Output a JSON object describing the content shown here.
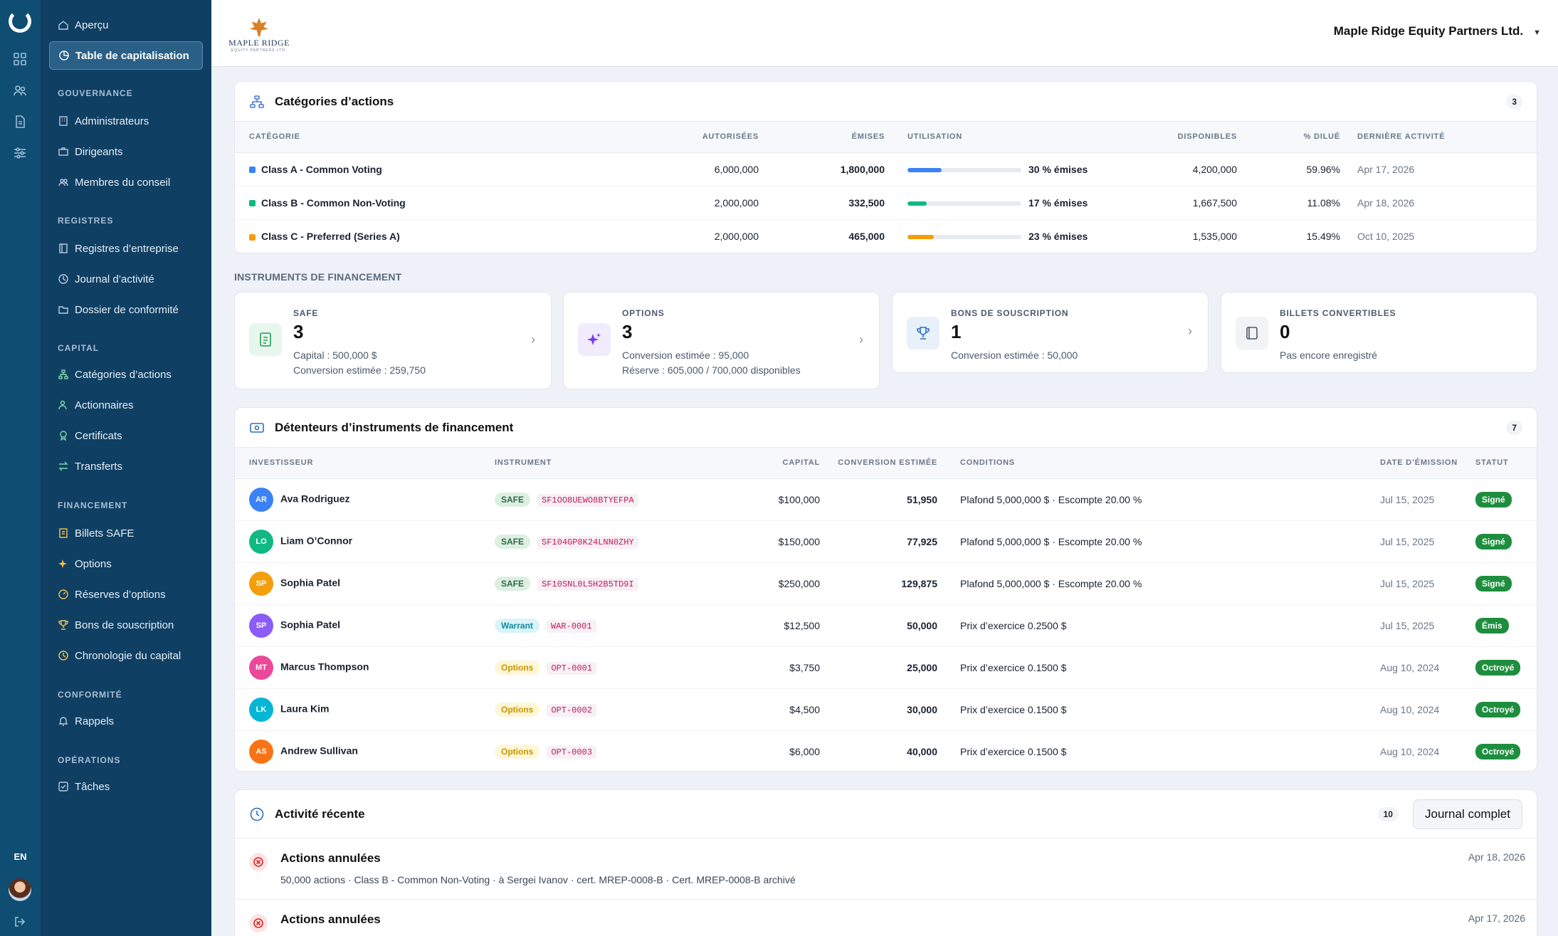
{
  "rail": {
    "lang": "EN",
    "icons": [
      "dashboard-icon",
      "people-icon",
      "document-icon",
      "sliders-icon"
    ]
  },
  "sidebar": {
    "top": [
      {
        "label": "Aperçu"
      },
      {
        "label": "Table de capitalisation"
      }
    ],
    "sections": [
      {
        "title": "GOUVERNANCE",
        "items": [
          {
            "label": "Administrateurs"
          },
          {
            "label": "Dirigeants"
          },
          {
            "label": "Membres du conseil"
          }
        ]
      },
      {
        "title": "REGISTRES",
        "items": [
          {
            "label": "Registres d’entreprise"
          },
          {
            "label": "Journal d’activité"
          },
          {
            "label": "Dossier de conformité"
          }
        ]
      },
      {
        "title": "CAPITAL",
        "items": [
          {
            "label": "Catégories d’actions"
          },
          {
            "label": "Actionnaires"
          },
          {
            "label": "Certificats"
          },
          {
            "label": "Transferts"
          }
        ]
      },
      {
        "title": "FINANCEMENT",
        "items": [
          {
            "label": "Billets SAFE"
          },
          {
            "label": "Options"
          },
          {
            "label": "Réserves d’options"
          },
          {
            "label": "Bons de souscription"
          },
          {
            "label": "Chronologie du capital"
          }
        ]
      },
      {
        "title": "CONFORMITÉ",
        "items": [
          {
            "label": "Rappels"
          }
        ]
      },
      {
        "title": "OPÉRATIONS",
        "items": [
          {
            "label": "Tâches"
          }
        ]
      }
    ]
  },
  "header": {
    "brand_name": "MAPLE RIDGE",
    "brand_sub": "EQUITY PARTNERS LTD.",
    "company": "Maple Ridge Equity Partners Ltd."
  },
  "share_classes": {
    "title": "Catégories d’actions",
    "count": "3",
    "columns": [
      "CATÉGORIE",
      "AUTORISÉES",
      "ÉMISES",
      "UTILISATION",
      "DISPONIBLES",
      "% DILUÉ",
      "DERNIÈRE ACTIVITÉ"
    ],
    "rows": [
      {
        "name": "Class A - Common Voting",
        "authorized": "6,000,000",
        "issued": "1,800,000",
        "utilization": "30 % émises",
        "util_value": 0.3,
        "available": "4,200,000",
        "diluted": "59.96%",
        "last": "Apr 17, 2026",
        "color": "#3b82f6"
      },
      {
        "name": "Class B - Common Non-Voting",
        "authorized": "2,000,000",
        "issued": "332,500",
        "utilization": "17 % émises",
        "util_value": 0.17,
        "available": "1,667,500",
        "diluted": "11.08%",
        "last": "Apr 18, 2026",
        "color": "#10b981"
      },
      {
        "name": "Class C - Preferred (Series A)",
        "authorized": "2,000,000",
        "issued": "465,000",
        "utilization": "23 % émises",
        "util_value": 0.23,
        "available": "1,535,000",
        "diluted": "15.49%",
        "last": "Oct 10, 2025",
        "color": "#f59e0b"
      }
    ]
  },
  "financing": {
    "label": "INSTRUMENTS DE FINANCEMENT",
    "tiles": [
      {
        "title": "SAFE",
        "value": "3",
        "line1": "Capital : 500,000 $",
        "line2": "Conversion estimée : 259,750",
        "icon": "document-icon"
      },
      {
        "title": "OPTIONS",
        "value": "3",
        "line1": "Conversion estimée : 95,000",
        "line2": "Réserve : 605,000 / 700,000 disponibles",
        "icon": "sparkle-icon"
      },
      {
        "title": "BONS DE SOUSCRIPTION",
        "value": "1",
        "line1": "Conversion estimée : 50,000",
        "line2": "",
        "icon": "trophy-icon"
      },
      {
        "title": "BILLETS CONVERTIBLES",
        "value": "0",
        "line1": "Pas encore enregistré",
        "line2": "",
        "icon": "note-icon"
      }
    ]
  },
  "holders": {
    "title": "Détenteurs d’instruments de financement",
    "count": "7",
    "columns": [
      "INVESTISSEUR",
      "INSTRUMENT",
      "CAPITAL",
      "CONVERSION ESTIMÉE",
      "CONDITIONS",
      "DATE D’ÉMISSION",
      "STATUT"
    ],
    "rows": [
      {
        "initials": "AR",
        "name": "Ava Rodriguez",
        "type": "SAFE",
        "code": "SF1OO8UEWO8BTYEFPA",
        "capital": "$100,000",
        "conversion": "51,950",
        "conditions": "Plafond 5,000,000 $ · Escompte 20.00 %",
        "date": "Jul 15, 2025",
        "status": "Signé",
        "avatar_color": "#3b82f6"
      },
      {
        "initials": "LO",
        "name": "Liam O’Connor",
        "type": "SAFE",
        "code": "SF104GP8K24LNN0ZHY",
        "capital": "$150,000",
        "conversion": "77,925",
        "conditions": "Plafond 5,000,000 $ · Escompte 20.00 %",
        "date": "Jul 15, 2025",
        "status": "Signé",
        "avatar_color": "#10b981"
      },
      {
        "initials": "SP",
        "name": "Sophia Patel",
        "type": "SAFE",
        "code": "SF10SNL0L5H2B5TD9I",
        "capital": "$250,000",
        "conversion": "129,875",
        "conditions": "Plafond 5,000,000 $ · Escompte 20.00 %",
        "date": "Jul 15, 2025",
        "status": "Signé",
        "avatar_color": "#f59e0b"
      },
      {
        "initials": "SP",
        "name": "Sophia Patel",
        "type": "Warrant",
        "code": "WAR-0001",
        "capital": "$12,500",
        "conversion": "50,000",
        "conditions": "Prix d’exercice 0.2500 $",
        "date": "Jul 15, 2025",
        "status": "Émis",
        "avatar_color": "#8b5cf6"
      },
      {
        "initials": "MT",
        "name": "Marcus Thompson",
        "type": "Options",
        "code": "OPT-0001",
        "capital": "$3,750",
        "conversion": "25,000",
        "conditions": "Prix d’exercice 0.1500 $",
        "date": "Aug 10, 2024",
        "status": "Octroyé",
        "avatar_color": "#ec4899"
      },
      {
        "initials": "LK",
        "name": "Laura Kim",
        "type": "Options",
        "code": "OPT-0002",
        "capital": "$4,500",
        "conversion": "30,000",
        "conditions": "Prix d’exercice 0.1500 $",
        "date": "Aug 10, 2024",
        "status": "Octroyé",
        "avatar_color": "#06b6d4"
      },
      {
        "initials": "AS",
        "name": "Andrew Sullivan",
        "type": "Options",
        "code": "OPT-0003",
        "capital": "$6,000",
        "conversion": "40,000",
        "conditions": "Prix d’exercice 0.1500 $",
        "date": "Aug 10, 2024",
        "status": "Octroyé",
        "avatar_color": "#f97316"
      }
    ]
  },
  "activity": {
    "title": "Activité récente",
    "count": "10",
    "button": "Journal complet",
    "items": [
      {
        "title": "Actions annulées",
        "detail": "50,000 actions · Class B - Common Non-Voting · à Sergei Ivanov · cert. MREP-0008-B · Cert. MREP-0008-B archivé",
        "date": "Apr 18, 2026"
      },
      {
        "title": "Actions annulées",
        "detail": "",
        "date": "Apr 17, 2026"
      }
    ]
  }
}
